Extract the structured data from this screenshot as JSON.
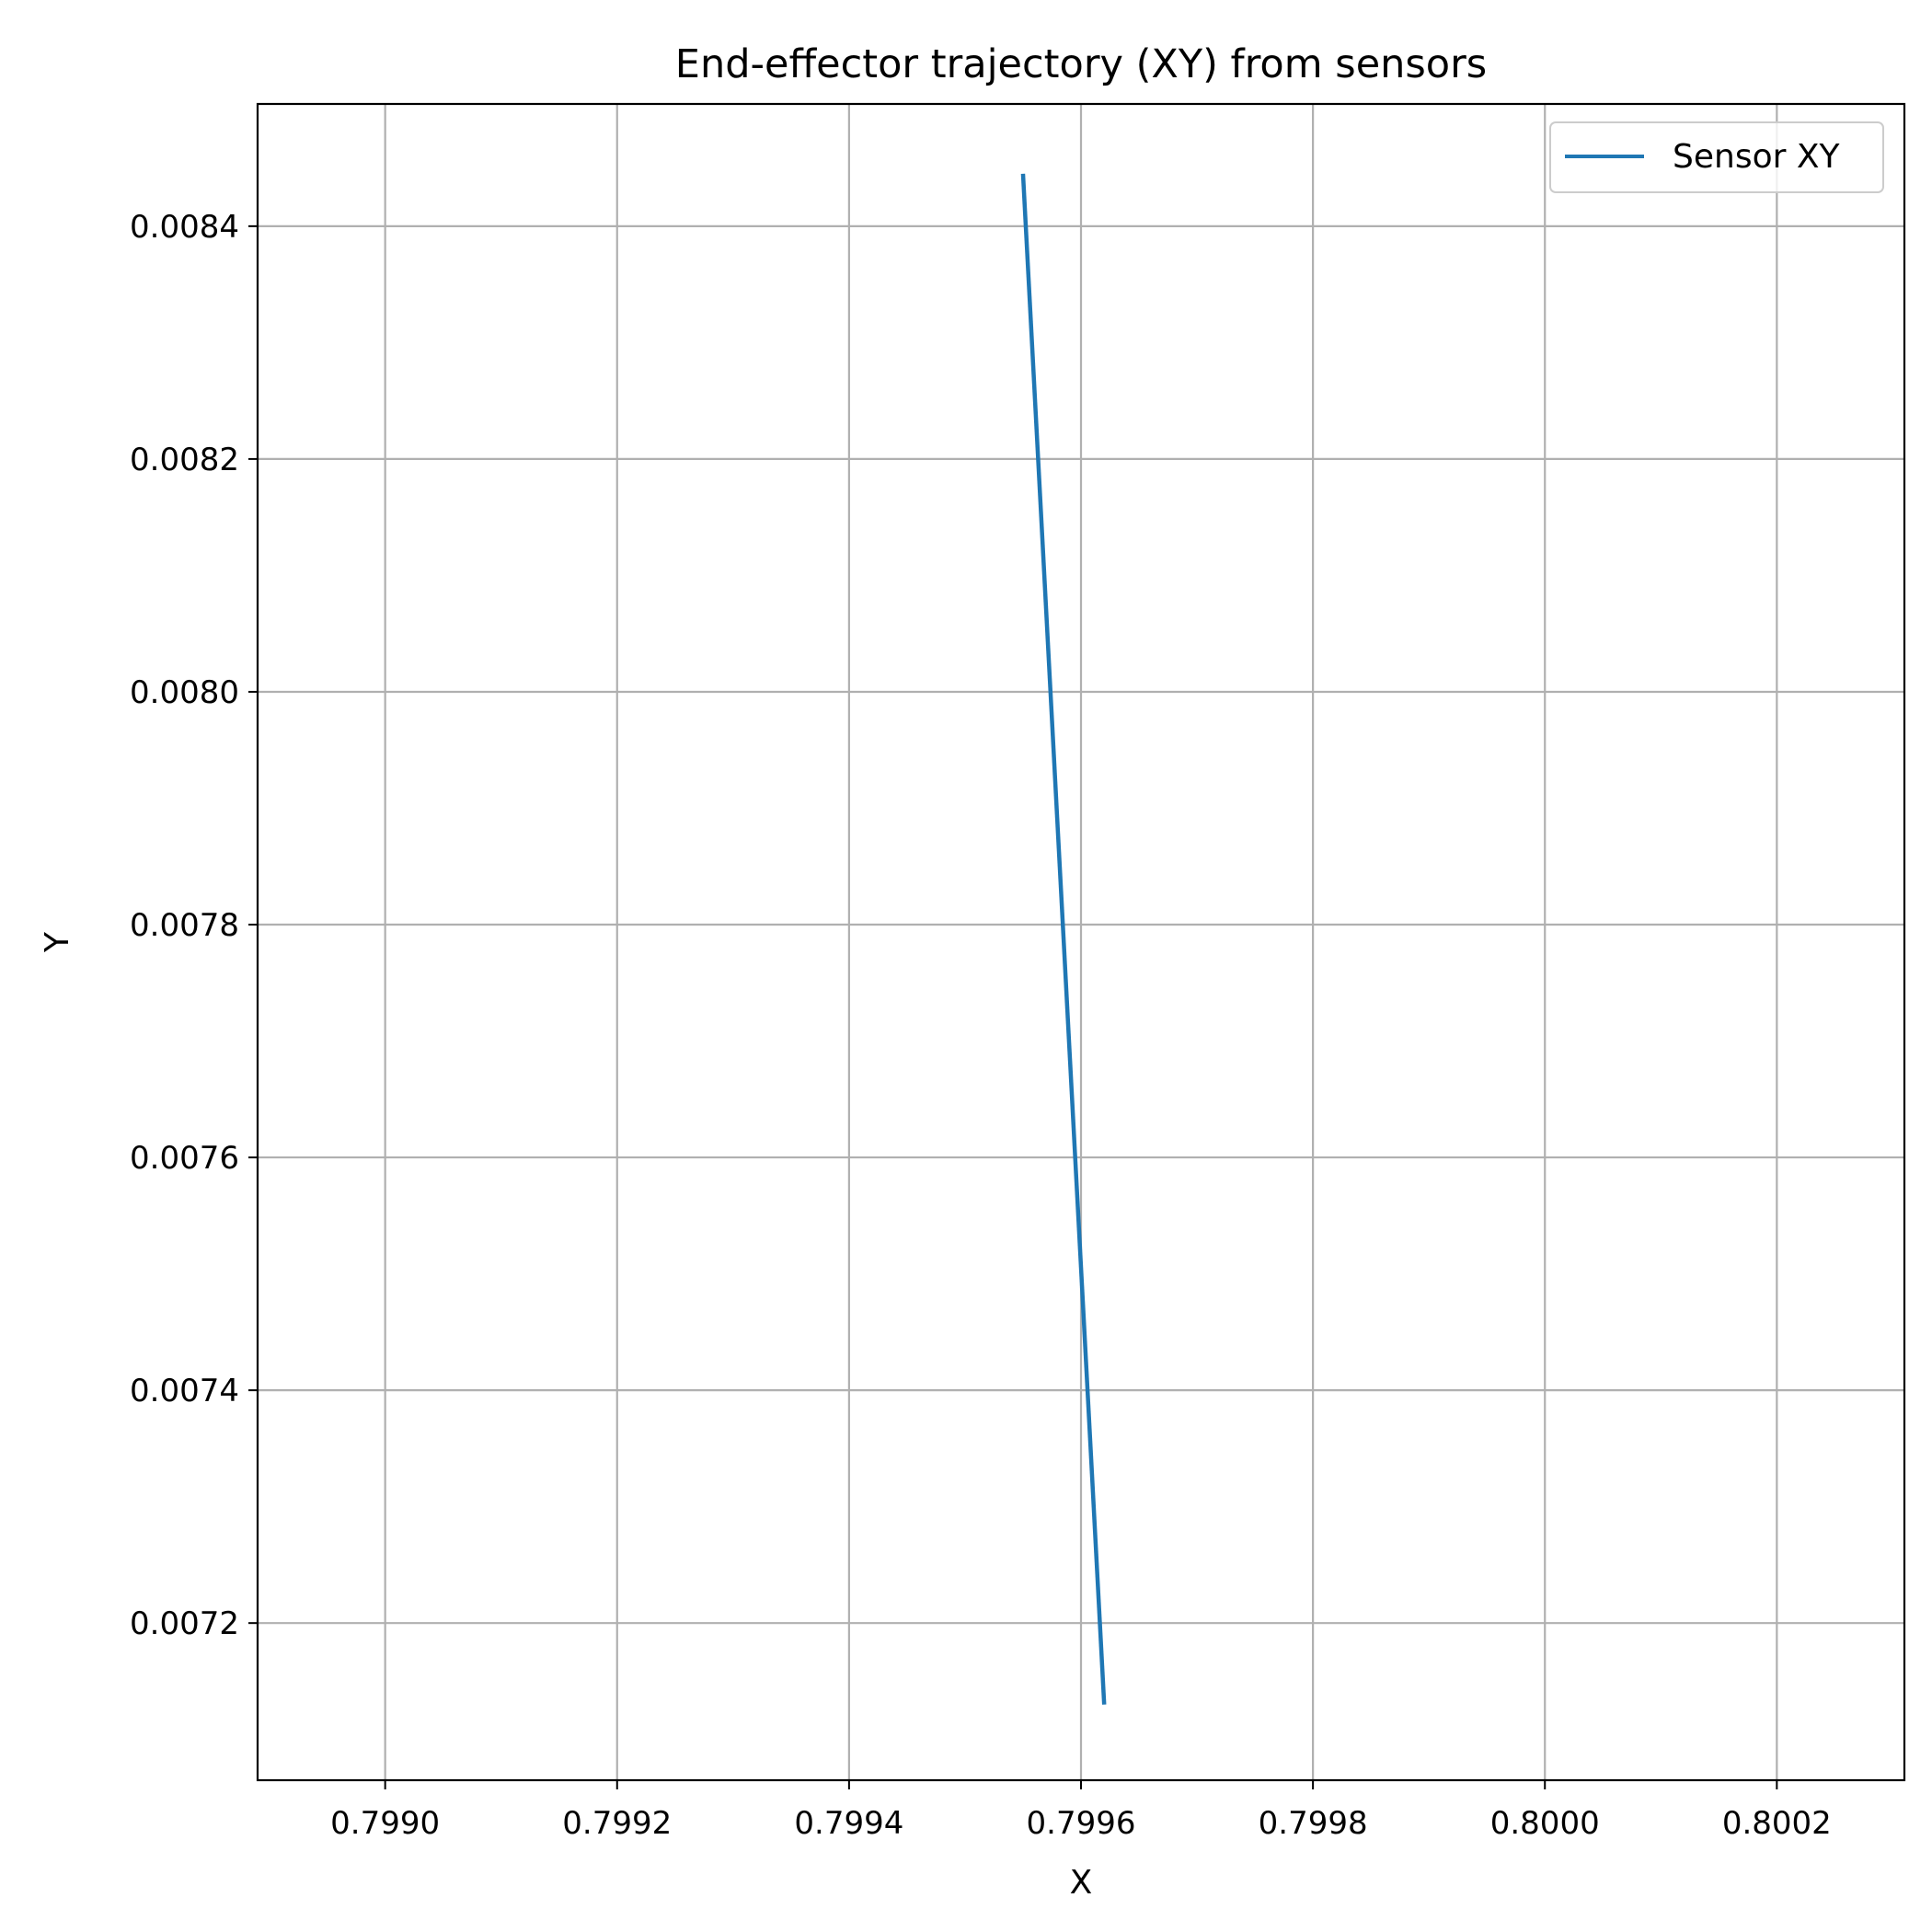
{
  "chart_data": {
    "type": "line",
    "title": "End-effector trajectory (XY) from sensors",
    "xlabel": "X",
    "ylabel": "Y",
    "xlim": [
      0.79889,
      0.80031
    ],
    "ylim": [
      0.007065,
      0.008505
    ],
    "x_ticks": [
      0.799,
      0.7992,
      0.7994,
      0.7996,
      0.7998,
      0.8,
      0.8002
    ],
    "x_tick_labels": [
      "0.7990",
      "0.7992",
      "0.7994",
      "0.7996",
      "0.7998",
      "0.8000",
      "0.8002"
    ],
    "y_ticks": [
      0.0072,
      0.0074,
      0.0076,
      0.0078,
      0.008,
      0.0082,
      0.0084
    ],
    "y_tick_labels": [
      "0.0072",
      "0.0074",
      "0.0076",
      "0.0078",
      "0.0080",
      "0.0082",
      "0.0084"
    ],
    "grid": true,
    "legend": {
      "position": "top-right"
    },
    "series": [
      {
        "name": "Sensor XY",
        "color": "#1f77b4",
        "x": [
          0.79955,
          0.79962
        ],
        "y": [
          0.008445,
          0.00713
        ]
      }
    ]
  }
}
